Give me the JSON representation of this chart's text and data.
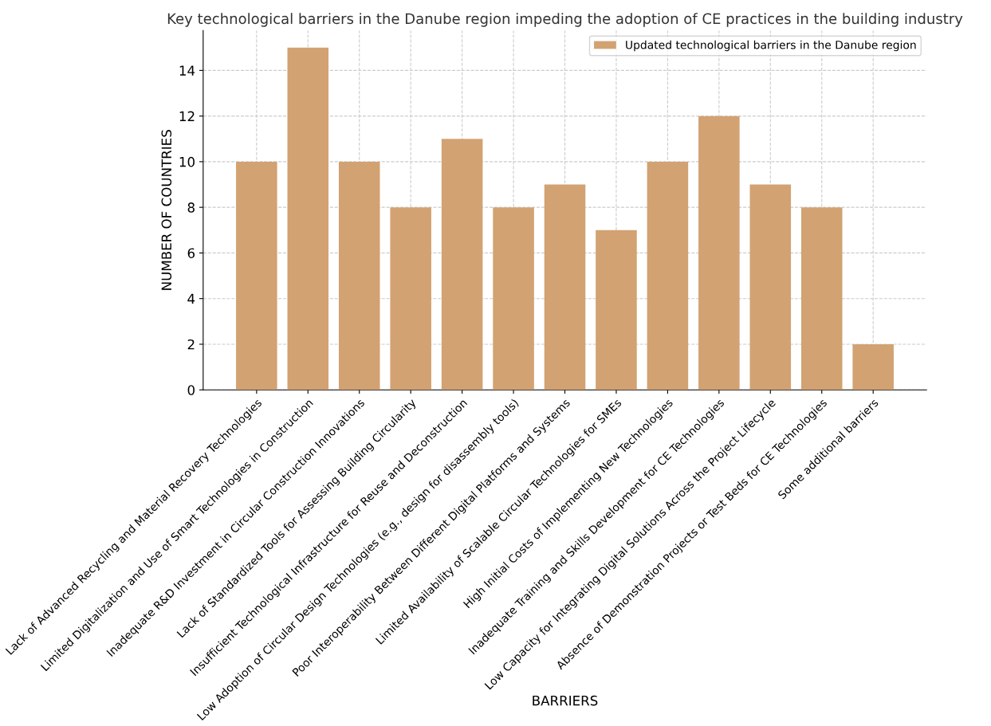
{
  "chart_data": {
    "type": "bar",
    "title": "Key technological barriers in the Danube region impeding the adoption of CE practices in the building industry",
    "xlabel": "BARRIERS",
    "ylabel": "NUMBER OF COUNTRIES",
    "categories": [
      "Lack of Advanced Recycling and Material Recovery Technologies",
      "Limited Digitalization and Use of Smart Technologies in Construction",
      "Inadequate R&D Investment in Circular Construction Innovations",
      "Lack of Standardized Tools for Assessing Building Circularity",
      "Insufficient Technological Infrastructure for Reuse and Deconstruction",
      "Low Adoption of Circular Design Technologies (e.g., design for disassembly tools)",
      "Poor Interoperability Between Different Digital Platforms and Systems",
      "Limited Availability of Scalable Circular Technologies for SMEs",
      "High Initial Costs of Implementing New Technologies",
      "Inadequate Training and Skills Development for CE Technologies",
      "Low Capacity for Integrating Digital Solutions Across the Project Lifecycle",
      "Absence of Demonstration Projects or Test Beds for CE Technologies",
      "Some additional barriers"
    ],
    "series": [
      {
        "name": "Updated technological barriers in the Danube region",
        "color": "#d2a272",
        "values": [
          10,
          15,
          10,
          8,
          11,
          8,
          9,
          7,
          10,
          12,
          9,
          8,
          2
        ]
      }
    ],
    "ylim": [
      0,
      15.75
    ],
    "yticks": [
      0,
      2,
      4,
      6,
      8,
      10,
      12,
      14
    ],
    "grid": true,
    "legend": "top right"
  }
}
